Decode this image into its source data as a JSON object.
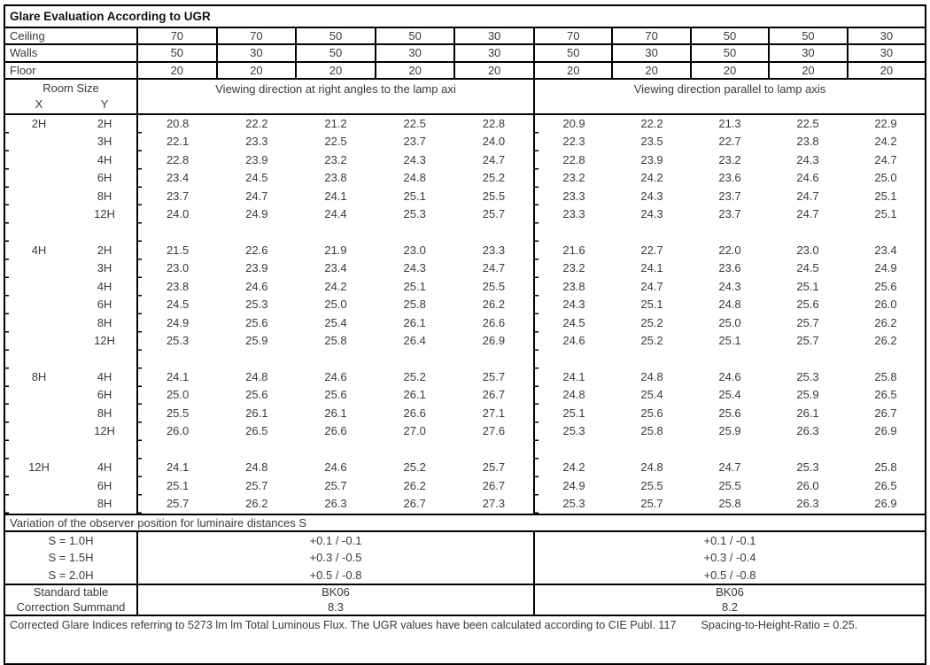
{
  "title": "Glare Evaluation According to UGR",
  "surfaces": {
    "rows": [
      {
        "label": "Ceiling",
        "values": [
          "70",
          "70",
          "50",
          "50",
          "30",
          "70",
          "70",
          "50",
          "50",
          "30"
        ]
      },
      {
        "label": "Walls",
        "values": [
          "50",
          "30",
          "50",
          "30",
          "30",
          "50",
          "30",
          "50",
          "30",
          "30"
        ]
      },
      {
        "label": "Floor",
        "values": [
          "20",
          "20",
          "20",
          "20",
          "20",
          "20",
          "20",
          "20",
          "20",
          "20"
        ]
      }
    ]
  },
  "header": {
    "room_size_label": "Room Size",
    "x_label": "X",
    "y_label": "Y",
    "right_angles_label": "Viewing direction at right angles to the lamp axi",
    "parallel_label": "Viewing direction parallel to lamp axis"
  },
  "body_groups": [
    {
      "x": "2H",
      "rows": [
        {
          "y": "2H",
          "right_angles": [
            "20.8",
            "22.2",
            "21.2",
            "22.5",
            "22.8"
          ],
          "parallel": [
            "20.9",
            "22.2",
            "21.3",
            "22.5",
            "22.9"
          ]
        },
        {
          "y": "3H",
          "right_angles": [
            "22.1",
            "23.3",
            "22.5",
            "23.7",
            "24.0"
          ],
          "parallel": [
            "22.3",
            "23.5",
            "22.7",
            "23.8",
            "24.2"
          ]
        },
        {
          "y": "4H",
          "right_angles": [
            "22.8",
            "23.9",
            "23.2",
            "24.3",
            "24.7"
          ],
          "parallel": [
            "22.8",
            "23.9",
            "23.2",
            "24.3",
            "24.7"
          ]
        },
        {
          "y": "6H",
          "right_angles": [
            "23.4",
            "24.5",
            "23.8",
            "24.8",
            "25.2"
          ],
          "parallel": [
            "23.2",
            "24.2",
            "23.6",
            "24.6",
            "25.0"
          ]
        },
        {
          "y": "8H",
          "right_angles": [
            "23.7",
            "24.7",
            "24.1",
            "25.1",
            "25.5"
          ],
          "parallel": [
            "23.3",
            "24.3",
            "23.7",
            "24.7",
            "25.1"
          ]
        },
        {
          "y": "12H",
          "right_angles": [
            "24.0",
            "24.9",
            "24.4",
            "25.3",
            "25.7"
          ],
          "parallel": [
            "23.3",
            "24.3",
            "23.7",
            "24.7",
            "25.1"
          ]
        }
      ]
    },
    {
      "x": "4H",
      "rows": [
        {
          "y": "2H",
          "right_angles": [
            "21.5",
            "22.6",
            "21.9",
            "23.0",
            "23.3"
          ],
          "parallel": [
            "21.6",
            "22.7",
            "22.0",
            "23.0",
            "23.4"
          ]
        },
        {
          "y": "3H",
          "right_angles": [
            "23.0",
            "23.9",
            "23.4",
            "24.3",
            "24.7"
          ],
          "parallel": [
            "23.2",
            "24.1",
            "23.6",
            "24.5",
            "24.9"
          ]
        },
        {
          "y": "4H",
          "right_angles": [
            "23.8",
            "24.6",
            "24.2",
            "25.1",
            "25.5"
          ],
          "parallel": [
            "23.8",
            "24.7",
            "24.3",
            "25.1",
            "25.6"
          ]
        },
        {
          "y": "6H",
          "right_angles": [
            "24.5",
            "25.3",
            "25.0",
            "25.8",
            "26.2"
          ],
          "parallel": [
            "24.3",
            "25.1",
            "24.8",
            "25.6",
            "26.0"
          ]
        },
        {
          "y": "8H",
          "right_angles": [
            "24.9",
            "25.6",
            "25.4",
            "26.1",
            "26.6"
          ],
          "parallel": [
            "24.5",
            "25.2",
            "25.0",
            "25.7",
            "26.2"
          ]
        },
        {
          "y": "12H",
          "right_angles": [
            "25.3",
            "25.9",
            "25.8",
            "26.4",
            "26.9"
          ],
          "parallel": [
            "24.6",
            "25.2",
            "25.1",
            "25.7",
            "26.2"
          ]
        }
      ]
    },
    {
      "x": "8H",
      "rows": [
        {
          "y": "4H",
          "right_angles": [
            "24.1",
            "24.8",
            "24.6",
            "25.2",
            "25.7"
          ],
          "parallel": [
            "24.1",
            "24.8",
            "24.6",
            "25.3",
            "25.8"
          ]
        },
        {
          "y": "6H",
          "right_angles": [
            "25.0",
            "25.6",
            "25.6",
            "26.1",
            "26.7"
          ],
          "parallel": [
            "24.8",
            "25.4",
            "25.4",
            "25.9",
            "26.5"
          ]
        },
        {
          "y": "8H",
          "right_angles": [
            "25.5",
            "26.1",
            "26.1",
            "26.6",
            "27.1"
          ],
          "parallel": [
            "25.1",
            "25.6",
            "25.6",
            "26.1",
            "26.7"
          ]
        },
        {
          "y": "12H",
          "right_angles": [
            "26.0",
            "26.5",
            "26.6",
            "27.0",
            "27.6"
          ],
          "parallel": [
            "25.3",
            "25.8",
            "25.9",
            "26.3",
            "26.9"
          ]
        }
      ]
    },
    {
      "x": "12H",
      "rows": [
        {
          "y": "4H",
          "right_angles": [
            "24.1",
            "24.8",
            "24.6",
            "25.2",
            "25.7"
          ],
          "parallel": [
            "24.2",
            "24.8",
            "24.7",
            "25.3",
            "25.8"
          ]
        },
        {
          "y": "6H",
          "right_angles": [
            "25.1",
            "25.7",
            "25.7",
            "26.2",
            "26.7"
          ],
          "parallel": [
            "24.9",
            "25.5",
            "25.5",
            "26.0",
            "26.5"
          ]
        },
        {
          "y": "8H",
          "right_angles": [
            "25.7",
            "26.2",
            "26.3",
            "26.7",
            "27.3"
          ],
          "parallel": [
            "25.3",
            "25.7",
            "25.8",
            "26.3",
            "26.9"
          ]
        }
      ]
    }
  ],
  "variation": {
    "title": "Variation of the observer position for luminaire distances S",
    "rows": [
      {
        "label": "S = 1.0H",
        "left": "+0.1 / -0.1",
        "right": "+0.1 / -0.1"
      },
      {
        "label": "S = 1.5H",
        "left": "+0.3 / -0.5",
        "right": "+0.3 / -0.4"
      },
      {
        "label": "S = 2.0H",
        "left": "+0.5 / -0.8",
        "right": "+0.5 / -0.8"
      }
    ]
  },
  "summary": {
    "rows": [
      {
        "label": "Standard table",
        "left": "BK06",
        "right": "BK06"
      },
      {
        "label": "Correction Summand",
        "left": "8.3",
        "right": "8.2"
      }
    ]
  },
  "footer": {
    "line1": "Corrected Glare Indices referring to 5273 lm lm Total Luminous Flux. The UGR values have been calculated according to CIE Publ. 117",
    "line2": "Spacing-to-Height-Ratio = 0.25."
  }
}
